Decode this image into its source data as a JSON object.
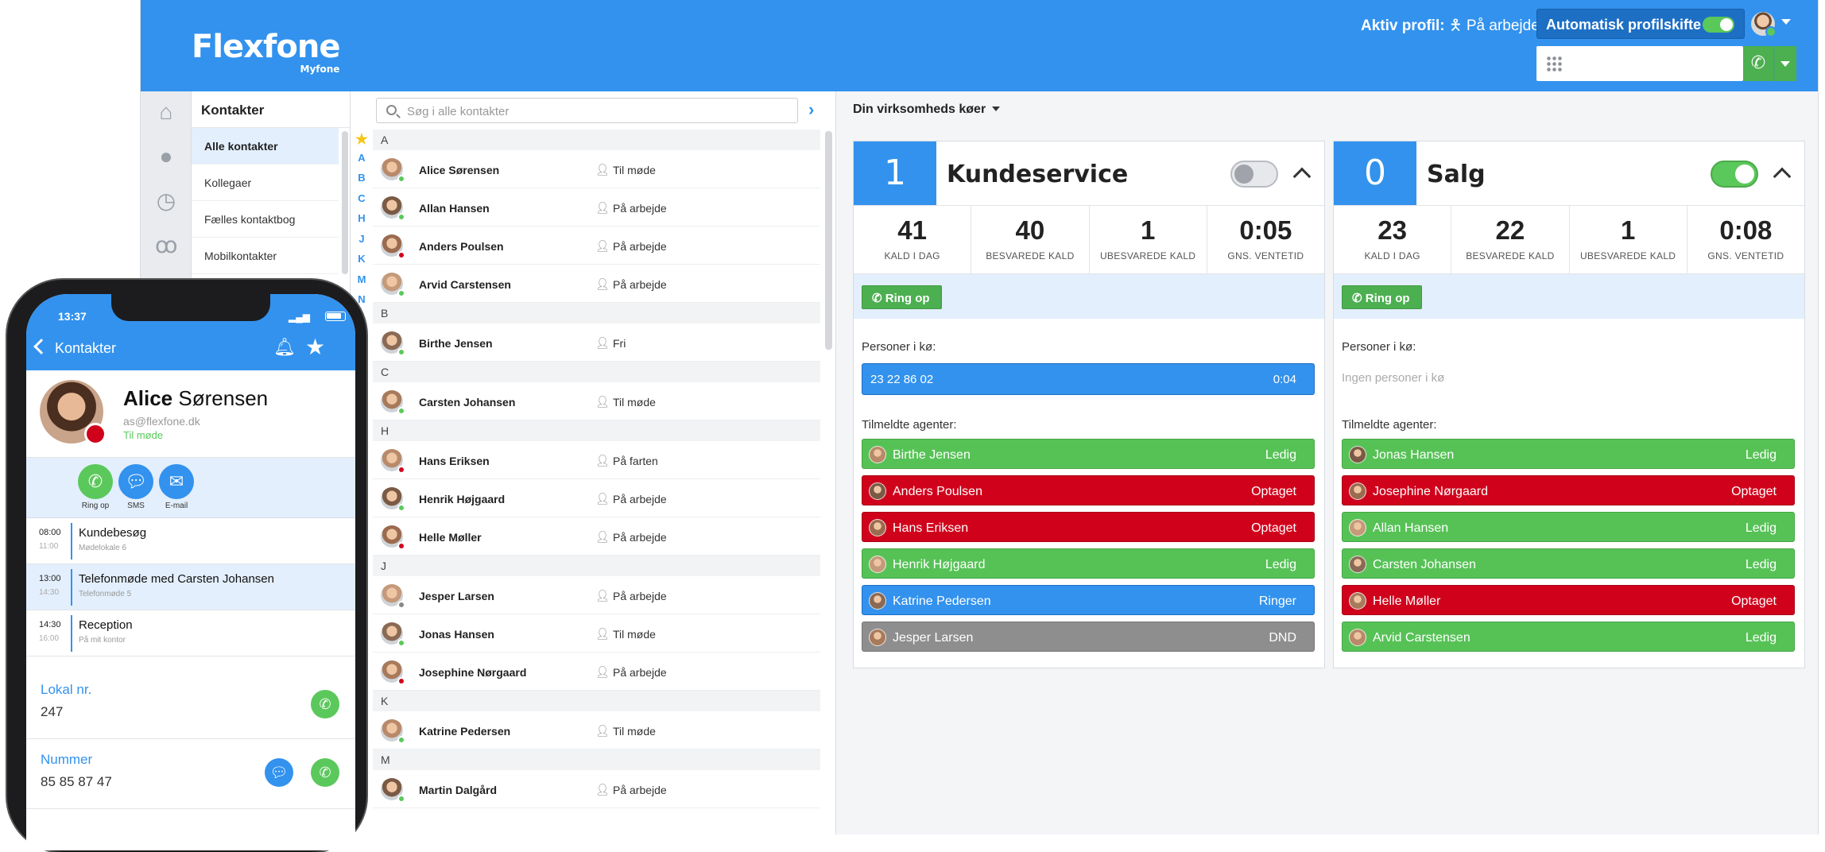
{
  "header": {
    "logo": "Flexfone",
    "logo_sub": "Myfone",
    "profile_label": "Aktiv profil:",
    "profile_value": "På arbejde",
    "auto_switch_label": "Automatisk profilskifte"
  },
  "nav": {
    "title": "Kontakter",
    "items": [
      "Alle kontakter",
      "Kollegaer",
      "Fælles kontaktbog",
      "Mobilkontakter"
    ]
  },
  "contacts": {
    "search_placeholder": "Søg i alle kontakter",
    "alphabet": [
      "A",
      "B",
      "C",
      "H",
      "J",
      "K",
      "M",
      "N"
    ],
    "sections": [
      {
        "letter": "A",
        "rows": [
          {
            "name": "Alice Sørensen",
            "status": "Til møde",
            "dot": "#5bc85b"
          },
          {
            "name": "Allan Hansen",
            "status": "På arbejde",
            "dot": "#5bc85b"
          },
          {
            "name": "Anders Poulsen",
            "status": "På arbejde",
            "dot": "#d0021b"
          },
          {
            "name": "Arvid Carstensen",
            "status": "På arbejde",
            "dot": "#5bc85b"
          }
        ]
      },
      {
        "letter": "B",
        "rows": [
          {
            "name": "Birthe Jensen",
            "status": "Fri",
            "dot": "#5bc85b"
          }
        ]
      },
      {
        "letter": "C",
        "rows": [
          {
            "name": "Carsten Johansen",
            "status": "Til møde",
            "dot": "#5bc85b"
          }
        ]
      },
      {
        "letter": "H",
        "rows": [
          {
            "name": "Hans Eriksen",
            "status": "På farten",
            "dot": "#d0021b"
          },
          {
            "name": "Henrik Højgaard",
            "status": "På arbejde",
            "dot": "#5bc85b"
          },
          {
            "name": "Helle Møller",
            "status": "På arbejde",
            "dot": "#d0021b"
          }
        ]
      },
      {
        "letter": "J",
        "rows": [
          {
            "name": "Jesper Larsen",
            "status": "På arbejde",
            "dot": "#888888"
          },
          {
            "name": "Jonas Hansen",
            "status": "Til møde",
            "dot": "#5bc85b"
          },
          {
            "name": "Josephine Nørgaard",
            "status": "På arbejde",
            "dot": "#d0021b"
          }
        ]
      },
      {
        "letter": "K",
        "rows": [
          {
            "name": "Katrine Pedersen",
            "status": "Til møde",
            "dot": "#5bc85b"
          }
        ]
      },
      {
        "letter": "M",
        "rows": [
          {
            "name": "Martin Dalgård",
            "status": "På arbejde",
            "dot": "#5bc85b"
          }
        ]
      }
    ]
  },
  "queues_header": "Din virksomheds køer",
  "queues": [
    {
      "count": "1",
      "name": "Kundeservice",
      "enabled": false,
      "stats": [
        {
          "value": "41",
          "label": "KALD I DAG"
        },
        {
          "value": "40",
          "label": "BESVAREDE KALD"
        },
        {
          "value": "1",
          "label": "UBESVAREDE KALD"
        },
        {
          "value": "0:05",
          "label": "GNS. VENTETID"
        }
      ],
      "call_label": "Ring op",
      "waiting_label": "Personer i kø:",
      "waiting": [
        {
          "number": "23 22 86 02",
          "time": "0:04"
        }
      ],
      "empty_text": "",
      "agents_label": "Tilmeldte agenter:",
      "agents": [
        {
          "name": "Birthe Jensen",
          "status": "Ledig",
          "kind": "ledig"
        },
        {
          "name": "Anders Poulsen",
          "status": "Optaget",
          "kind": "optaget"
        },
        {
          "name": "Hans Eriksen",
          "status": "Optaget",
          "kind": "optaget"
        },
        {
          "name": "Henrik Højgaard",
          "status": "Ledig",
          "kind": "ledig"
        },
        {
          "name": "Katrine Pedersen",
          "status": "Ringer",
          "kind": "ringer"
        },
        {
          "name": "Jesper Larsen",
          "status": "DND",
          "kind": "dnd"
        }
      ]
    },
    {
      "count": "0",
      "name": "Salg",
      "enabled": true,
      "stats": [
        {
          "value": "23",
          "label": "KALD I DAG"
        },
        {
          "value": "22",
          "label": "BESVAREDE KALD"
        },
        {
          "value": "1",
          "label": "UBESVAREDE KALD"
        },
        {
          "value": "0:08",
          "label": "GNS. VENTETID"
        }
      ],
      "call_label": "Ring op",
      "waiting_label": "Personer i kø:",
      "waiting": [],
      "empty_text": "Ingen personer i kø",
      "agents_label": "Tilmeldte agenter:",
      "agents": [
        {
          "name": "Jonas Hansen",
          "status": "Ledig",
          "kind": "ledig"
        },
        {
          "name": "Josephine Nørgaard",
          "status": "Optaget",
          "kind": "optaget"
        },
        {
          "name": "Allan Hansen",
          "status": "Ledig",
          "kind": "ledig"
        },
        {
          "name": "Carsten Johansen",
          "status": "Ledig",
          "kind": "ledig"
        },
        {
          "name": "Helle Møller",
          "status": "Optaget",
          "kind": "optaget"
        },
        {
          "name": "Arvid Carstensen",
          "status": "Ledig",
          "kind": "ledig"
        }
      ]
    }
  ],
  "phone": {
    "time": "13:37",
    "back_label": "Kontakter",
    "first_name": "Alice",
    "last_name": "Sørensen",
    "email": "as@flexfone.dk",
    "status": "Til møde",
    "actions": [
      "Ring op",
      "SMS",
      "E-mail"
    ],
    "events": [
      {
        "start": "08:00",
        "end": "11:00",
        "title": "Kundebesøg",
        "place": "Mødelokale 6"
      },
      {
        "start": "13:00",
        "end": "14:30",
        "title": "Telefonmøde med Carsten Johansen",
        "place": "Telefonmøde 5"
      },
      {
        "start": "14:30",
        "end": "16:00",
        "title": "Reception",
        "place": "På mit kontor"
      }
    ],
    "local_label": "Lokal nr.",
    "local_value": "247",
    "number_label": "Nummer",
    "number_value": "85 85 87 47"
  }
}
